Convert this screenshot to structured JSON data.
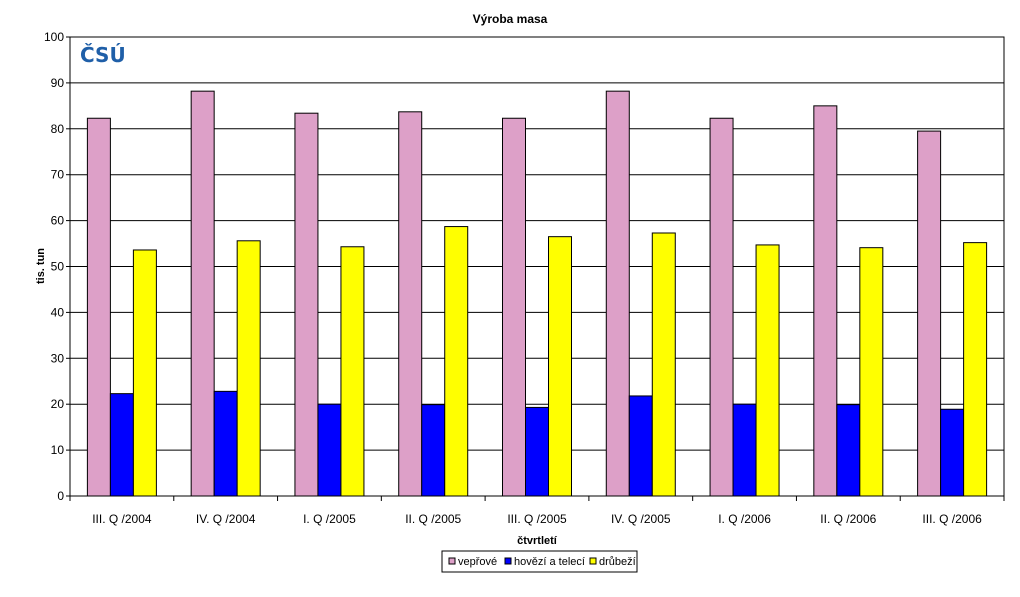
{
  "chart_data": {
    "type": "bar",
    "title": "Výroba masa",
    "xlabel": "čtvrtletí",
    "ylabel": "tis. tun",
    "ylim": [
      0,
      100
    ],
    "yticks": [
      0,
      10,
      20,
      30,
      40,
      50,
      60,
      70,
      80,
      90,
      100
    ],
    "grid": true,
    "legend_position": "bottom",
    "categories": [
      "III. Q /2004",
      "IV. Q /2004",
      "I. Q /2005",
      "II. Q /2005",
      "III. Q /2005",
      "IV. Q /2005",
      "I. Q /2006",
      "II. Q /2006",
      "III. Q /2006"
    ],
    "series": [
      {
        "name": "vepřové",
        "color": "#dda0c8",
        "values": [
          82.3,
          88.2,
          83.4,
          83.7,
          82.3,
          88.2,
          82.3,
          85.0,
          79.5
        ]
      },
      {
        "name": "hovězí a telecí",
        "color": "#0000ff",
        "values": [
          22.3,
          22.8,
          20.0,
          19.9,
          19.3,
          21.8,
          20.0,
          19.9,
          18.9
        ]
      },
      {
        "name": "drůbeží",
        "color": "#ffff00",
        "values": [
          53.6,
          55.6,
          54.3,
          58.7,
          56.5,
          57.3,
          54.7,
          54.1,
          55.2
        ]
      }
    ]
  },
  "logo": {
    "text": "ČSÚ",
    "color": "#1f5fa8"
  }
}
